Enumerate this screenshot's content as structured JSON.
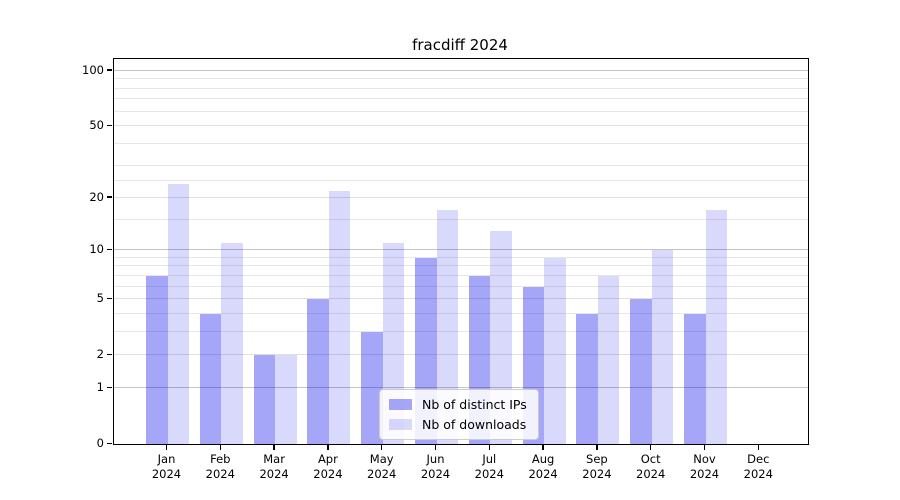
{
  "chart_data": {
    "type": "bar",
    "title": "fracdiff 2024",
    "categories": [
      {
        "month": "Jan",
        "year": "2024"
      },
      {
        "month": "Feb",
        "year": "2024"
      },
      {
        "month": "Mar",
        "year": "2024"
      },
      {
        "month": "Apr",
        "year": "2024"
      },
      {
        "month": "May",
        "year": "2024"
      },
      {
        "month": "Jun",
        "year": "2024"
      },
      {
        "month": "Jul",
        "year": "2024"
      },
      {
        "month": "Aug",
        "year": "2024"
      },
      {
        "month": "Sep",
        "year": "2024"
      },
      {
        "month": "Oct",
        "year": "2024"
      },
      {
        "month": "Nov",
        "year": "2024"
      },
      {
        "month": "Dec",
        "year": "2024"
      }
    ],
    "series": [
      {
        "name": "Nb of distinct IPs",
        "color": "rgba(0,0,238,0.35)",
        "values": [
          7,
          4,
          2,
          5,
          3,
          9,
          7,
          6,
          4,
          5,
          4,
          0
        ]
      },
      {
        "name": "Nb of downloads",
        "color": "rgba(0,0,238,0.15)",
        "values": [
          24,
          11,
          2,
          22,
          11,
          17,
          13,
          9,
          7,
          10,
          17,
          0
        ]
      }
    ],
    "y_axis": {
      "scale": "log1p",
      "tick_values": [
        0,
        1,
        2,
        5,
        10,
        20,
        50,
        100
      ],
      "tick_labels": [
        "0",
        "1",
        "2",
        "5",
        "10",
        "20",
        "50",
        "100"
      ],
      "major_values": [
        1,
        10,
        100
      ],
      "minor_gridline_values": [
        3,
        4,
        6,
        7,
        8,
        9,
        15,
        25,
        30,
        40,
        60,
        70,
        80,
        90
      ],
      "top_value": 116
    },
    "grid": true,
    "legend_position": "lower center"
  },
  "colors": {
    "axis": "#000000",
    "major_grid": "#c4c4c4",
    "minor_grid": "#e7e7e7",
    "legend_border": "#cccccc",
    "legend_background": "rgba(255,255,255,0.85)"
  }
}
